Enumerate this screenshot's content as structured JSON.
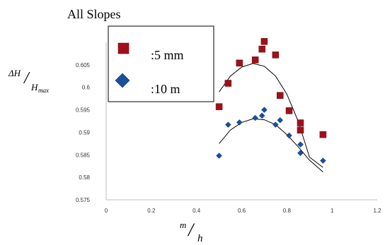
{
  "chart_data": {
    "type": "scatter",
    "title": "All Slopes",
    "xlabel": "m/h",
    "ylabel": "ΔH/H_max",
    "xlim": [
      0,
      1.2
    ],
    "ylim": [
      0.575,
      0.61
    ],
    "xticks": [
      "0",
      "0.2",
      "0.4",
      "0.6",
      "0.8",
      "1",
      "1.2"
    ],
    "yticks": [
      "0.575",
      "0.58",
      "0.585",
      "0.59",
      "0.595",
      "0.6",
      "0.605"
    ],
    "grid": false,
    "legend_position": "top-left",
    "series": [
      {
        "name": ":5 mm",
        "marker": "square",
        "color": "#a0101a",
        "points": [
          [
            0.5,
            0.5957
          ],
          [
            0.54,
            0.6009
          ],
          [
            0.59,
            0.6054
          ],
          [
            0.66,
            0.6061
          ],
          [
            0.69,
            0.6085
          ],
          [
            0.7,
            0.6102
          ],
          [
            0.75,
            0.6072
          ],
          [
            0.77,
            0.5982
          ],
          [
            0.81,
            0.5948
          ],
          [
            0.86,
            0.5921
          ],
          [
            0.86,
            0.5905
          ],
          [
            0.96,
            0.5895
          ]
        ],
        "trend": [
          [
            0.5,
            0.599
          ],
          [
            0.55,
            0.6025
          ],
          [
            0.6,
            0.6045
          ],
          [
            0.65,
            0.6053
          ],
          [
            0.7,
            0.6047
          ],
          [
            0.75,
            0.6025
          ],
          [
            0.8,
            0.5985
          ],
          [
            0.85,
            0.5925
          ],
          [
            0.9,
            0.5845
          ],
          [
            0.96,
            0.5822
          ]
        ]
      },
      {
        "name": ":10 m",
        "marker": "diamond",
        "color": "#1a4f9c",
        "points": [
          [
            0.5,
            0.5848
          ],
          [
            0.54,
            0.5917
          ],
          [
            0.59,
            0.5922
          ],
          [
            0.66,
            0.5932
          ],
          [
            0.69,
            0.5937
          ],
          [
            0.7,
            0.595
          ],
          [
            0.75,
            0.5917
          ],
          [
            0.77,
            0.5927
          ],
          [
            0.81,
            0.5893
          ],
          [
            0.86,
            0.5873
          ],
          [
            0.86,
            0.5854
          ],
          [
            0.96,
            0.5837
          ]
        ],
        "trend": [
          [
            0.5,
            0.5875
          ],
          [
            0.55,
            0.5905
          ],
          [
            0.6,
            0.5922
          ],
          [
            0.65,
            0.593
          ],
          [
            0.7,
            0.5928
          ],
          [
            0.75,
            0.5917
          ],
          [
            0.8,
            0.5895
          ],
          [
            0.85,
            0.5868
          ],
          [
            0.9,
            0.5838
          ],
          [
            0.96,
            0.5812
          ]
        ]
      }
    ]
  }
}
